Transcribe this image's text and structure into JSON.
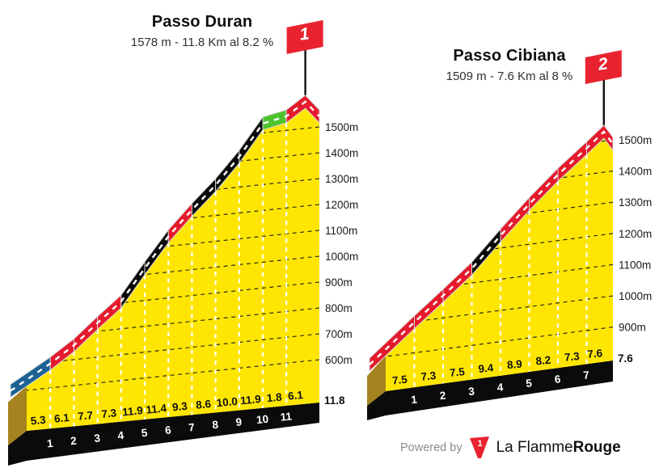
{
  "colors": {
    "yellow": "#FFE602",
    "road_red": "#E51A2C",
    "road_blue": "#1C6293",
    "road_green": "#4FC32D",
    "road_black": "#0B0B0B",
    "side_brown": "#A5831F",
    "band_black": "#0B0B0B",
    "road_border": "#D8D8D8",
    "flag_red": "#E8232F",
    "logo_red": "#E8232F"
  },
  "chart_data": [
    {
      "type": "area",
      "title": "Passo Duran",
      "subtitle": "1578 m - 11.8 Km al 8.2 %",
      "flag_number": "1",
      "summit_elevation_m": 1578,
      "length_km": 11.8,
      "avg_gradient_pct": 8.2,
      "gradients_pct": [
        5.3,
        6.1,
        7.7,
        7.3,
        11.9,
        11.4,
        9.3,
        8.6,
        10.0,
        11.9,
        1.8,
        6.1
      ],
      "gradient_labels": [
        "5.3",
        "6.1",
        "7.7",
        "7.3",
        "11.9",
        "11.4",
        "9.3",
        "8.6",
        "10.0",
        "11.9",
        "1.8",
        "6.1"
      ],
      "segment_colors": [
        "blue",
        "red",
        "red",
        "red",
        "black",
        "black",
        "red",
        "black",
        "black",
        "black",
        "green",
        "red"
      ],
      "km_ticks": [
        "1",
        "2",
        "3",
        "4",
        "5",
        "6",
        "7",
        "8",
        "9",
        "10",
        "11"
      ],
      "end_km_label": "11.8",
      "elevation_labels": [
        "1500m",
        "1400m",
        "1300m",
        "1200m",
        "1100m",
        "1000m",
        "900m",
        "800m",
        "700m",
        "600m"
      ]
    },
    {
      "type": "area",
      "title": "Passo Cibiana",
      "subtitle": "1509 m - 7.6 Km al 8 %",
      "flag_number": "2",
      "summit_elevation_m": 1509,
      "length_km": 7.6,
      "avg_gradient_pct": 8,
      "gradients_pct": [
        7.5,
        7.3,
        7.5,
        9.4,
        8.9,
        8.2,
        7.3,
        7.6
      ],
      "gradient_labels": [
        "7.5",
        "7.3",
        "7.5",
        "9.4",
        "8.9",
        "8.2",
        "7.3",
        "7.6"
      ],
      "segment_colors": [
        "red",
        "red",
        "red",
        "black",
        "red",
        "red",
        "red",
        "red"
      ],
      "km_ticks": [
        "1",
        "2",
        "3",
        "4",
        "5",
        "6",
        "7"
      ],
      "end_km_label": "7.6",
      "elevation_labels": [
        "1500m",
        "1400m",
        "1300m",
        "1200m",
        "1100m",
        "1000m",
        "900m"
      ]
    }
  ],
  "footer": {
    "powered_by": "Powered by",
    "logo_number": "1",
    "brand_regular": "La Flamme",
    "brand_bold": "Rouge"
  }
}
